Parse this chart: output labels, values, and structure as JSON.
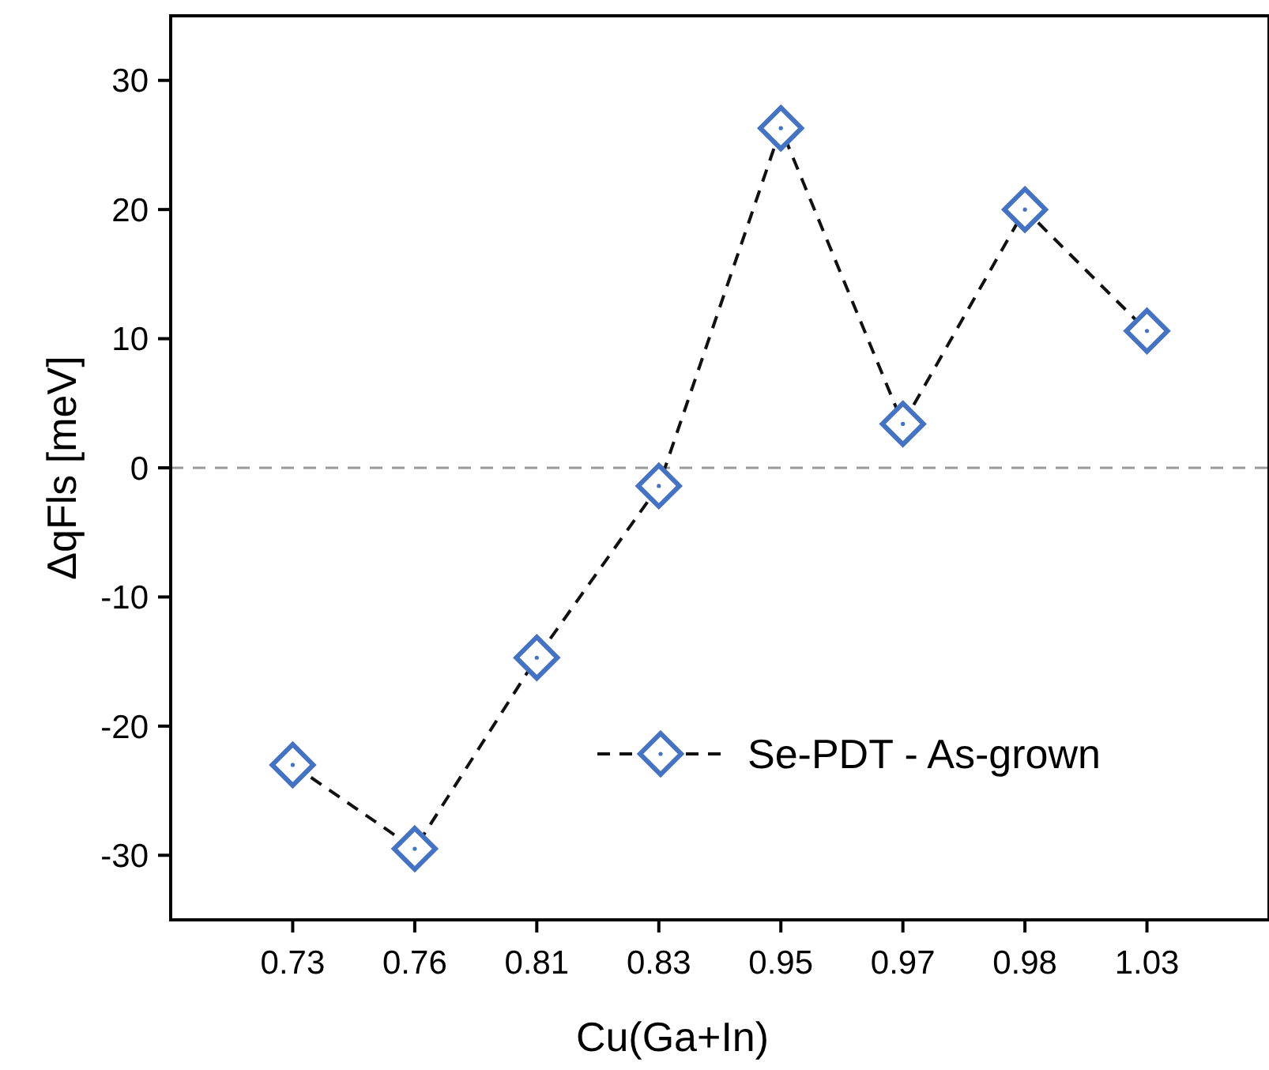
{
  "chart_data": {
    "type": "line",
    "xlabel": "Cu(Ga+In)",
    "ylabel": "ΔqFls [meV]",
    "categories": [
      "0.73",
      "0.76",
      "0.81",
      "0.83",
      "0.95",
      "0.97",
      "0.98",
      "1.03"
    ],
    "series": [
      {
        "name": "Se-PDT - As-grown",
        "color": "#4472c4",
        "values": [
          -23.0,
          -29.5,
          -14.7,
          -1.4,
          26.3,
          3.4,
          20.0,
          10.6
        ]
      }
    ],
    "ylim": [
      -35,
      35
    ],
    "yticks": [
      -30,
      -20,
      -10,
      0,
      10,
      20,
      30
    ],
    "ref_lines": [
      {
        "axis": "y",
        "value": 0,
        "color": "#999999",
        "line_style": "dashed"
      }
    ],
    "legend": "bottom right",
    "marker": "diamond",
    "line_style": "dashed",
    "grid": false
  }
}
